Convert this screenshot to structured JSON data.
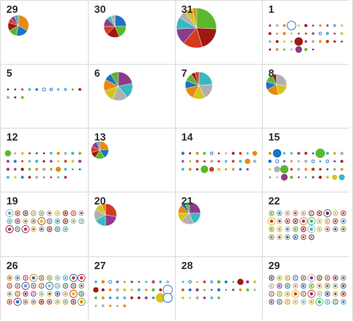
{
  "colors": {
    "palette": [
      "#e8890c",
      "#1a73c4",
      "#5ab82e",
      "#a01812",
      "#d43a1e",
      "#8c3b8c",
      "#3ab8c0",
      "#b0b0b0",
      "#d4c41a"
    ],
    "grid_line": "#dddddd",
    "day_text": "#2a2a2a"
  },
  "calendar": {
    "days": [
      {
        "day": "29",
        "viz": "pie",
        "slices": [
          5,
          3,
          2,
          2,
          1,
          1,
          1
        ]
      },
      {
        "day": "30",
        "viz": "pie",
        "slices": [
          4,
          3,
          3,
          2,
          2,
          1,
          1
        ]
      },
      {
        "day": "31",
        "viz": "pie",
        "slices": [
          8,
          6,
          5,
          4,
          3,
          2,
          2,
          1
        ]
      },
      {
        "day": "1",
        "viz": "dots",
        "count": 40
      },
      {
        "day": "5",
        "viz": "dots",
        "count": 14
      },
      {
        "day": "6",
        "viz": "pie",
        "slices": [
          5,
          4,
          4,
          3,
          3,
          2,
          2
        ]
      },
      {
        "day": "7",
        "viz": "pie",
        "slices": [
          5,
          4,
          3,
          3,
          2,
          2,
          1,
          1
        ]
      },
      {
        "day": "8",
        "viz": "pie",
        "slices": [
          4,
          3,
          3,
          2,
          2,
          1
        ]
      },
      {
        "day": "12",
        "viz": "dots",
        "count": 42
      },
      {
        "day": "13",
        "viz": "pie",
        "slices": [
          4,
          3,
          3,
          2,
          2,
          2,
          1
        ]
      },
      {
        "day": "14",
        "viz": "dots",
        "count": 32
      },
      {
        "day": "15",
        "viz": "dots",
        "count": 44
      },
      {
        "day": "19",
        "viz": "rings",
        "count": 28
      },
      {
        "day": "20",
        "viz": "pie",
        "slices": [
          5,
          4,
          3,
          3,
          2,
          1
        ]
      },
      {
        "day": "21",
        "viz": "pie",
        "slices": [
          4,
          3,
          3,
          2,
          2,
          1,
          1
        ]
      },
      {
        "day": "22",
        "viz": "rings",
        "count": 36
      },
      {
        "day": "26",
        "viz": "rings",
        "count": 40
      },
      {
        "day": "27",
        "viz": "dots",
        "count": 38
      },
      {
        "day": "28",
        "viz": "dots",
        "count": 28
      },
      {
        "day": "29",
        "viz": "rings",
        "count": 40
      }
    ]
  }
}
